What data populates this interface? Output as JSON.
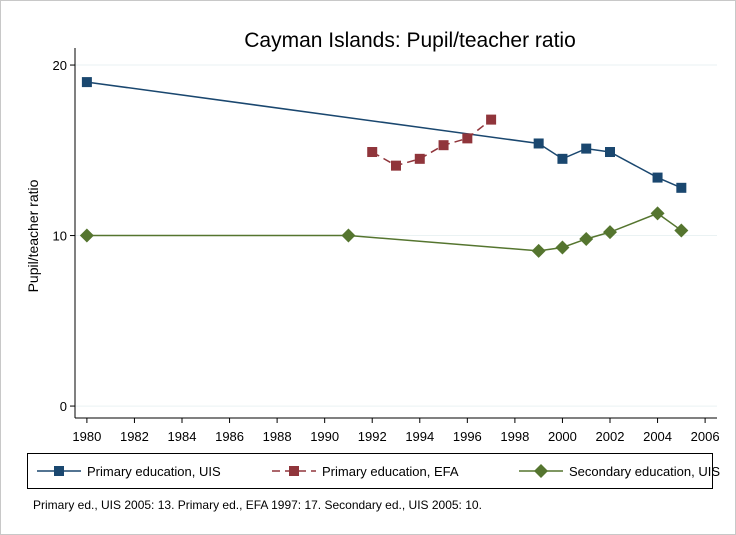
{
  "chart_data": {
    "type": "line",
    "title": "Cayman Islands: Pupil/teacher ratio",
    "y_label": "Pupil/teacher ratio",
    "note": "Primary ed., UIS 2005: 13. Primary ed., EFA 1997: 17. Secondary ed., UIS 2005: 10.",
    "xlim": [
      1979.5,
      2006.5
    ],
    "xticks": [
      1980,
      1982,
      1984,
      1986,
      1988,
      1990,
      1992,
      1994,
      1996,
      1998,
      2000,
      2002,
      2004,
      2006
    ],
    "ylim": [
      -0.7,
      21
    ],
    "yticks": [
      0,
      10,
      20
    ],
    "grid": true,
    "legend": "bottom",
    "series": [
      {
        "name": "Primary education, UIS",
        "color": "#1a476f",
        "marker": "square",
        "dash": false,
        "x": [
          1980,
          1999,
          2000,
          2001,
          2002,
          2004,
          2005
        ],
        "values": [
          19.0,
          15.4,
          14.5,
          15.1,
          14.9,
          13.4,
          12.8
        ]
      },
      {
        "name": "Primary education, EFA",
        "color": "#90353b",
        "marker": "square",
        "dash": true,
        "x": [
          1992,
          1993,
          1994,
          1995,
          1996,
          1997
        ],
        "values": [
          14.9,
          14.1,
          14.5,
          15.3,
          15.7,
          16.8
        ]
      },
      {
        "name": "Secondary education, UIS",
        "color": "#55752f",
        "marker": "diamond",
        "dash": false,
        "x": [
          1980,
          1991,
          1999,
          2000,
          2001,
          2002,
          2004,
          2005
        ],
        "values": [
          10.0,
          10.0,
          9.1,
          9.3,
          9.8,
          10.2,
          11.3,
          10.3
        ]
      }
    ]
  }
}
